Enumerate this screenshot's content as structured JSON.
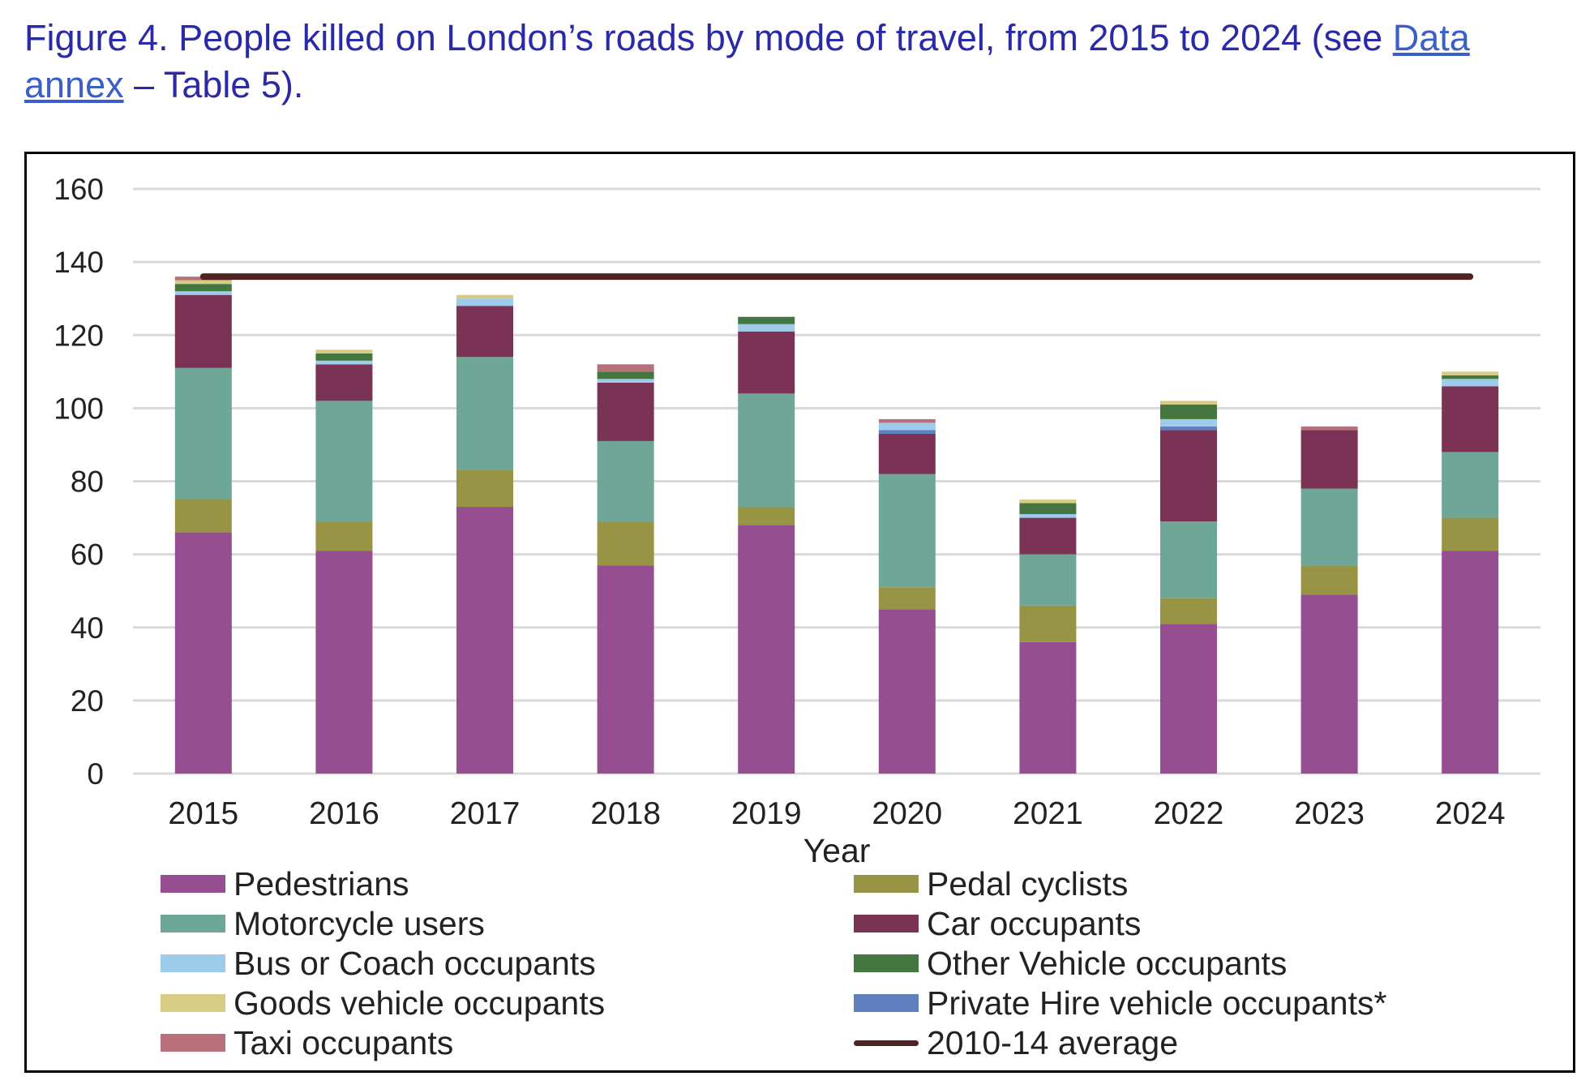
{
  "title": {
    "prefix": "Figure 4. People killed on London’s roads by mode of travel, from 2015 to 2024 (see ",
    "link": "Data annex",
    "suffix": " – Table 5)."
  },
  "chart_data": {
    "type": "bar",
    "stacked": true,
    "title": "Figure 4. People killed on London’s roads by mode of travel, from 2015 to 2024",
    "xlabel": "Year",
    "ylabel": "",
    "ylim": [
      0,
      160
    ],
    "yticks": [
      "0",
      "20",
      "40",
      "60",
      "80",
      "100",
      "120",
      "140",
      "160"
    ],
    "grid": true,
    "legend_position": "bottom",
    "categories": [
      "2015",
      "2016",
      "2017",
      "2018",
      "2019",
      "2020",
      "2021",
      "2022",
      "2023",
      "2024"
    ],
    "series": [
      {
        "name": "Pedestrians",
        "color": "#954f91",
        "values": [
          66,
          61,
          73,
          57,
          68,
          45,
          36,
          41,
          49,
          61
        ]
      },
      {
        "name": "Pedal cyclists",
        "color": "#979445",
        "values": [
          9,
          8,
          10,
          12,
          5,
          6,
          10,
          7,
          8,
          9
        ]
      },
      {
        "name": "Motorcycle users",
        "color": "#6ea797",
        "values": [
          36,
          33,
          31,
          22,
          31,
          31,
          14,
          21,
          21,
          18
        ]
      },
      {
        "name": "Car occupants",
        "color": "#7a3355",
        "values": [
          20,
          10,
          14,
          16,
          17,
          11,
          10,
          25,
          16,
          18
        ]
      },
      {
        "name": "Private Hire vehicle occupants*",
        "color": "#5f7fbf",
        "values": [
          0,
          0,
          0,
          0,
          0,
          1,
          0,
          1,
          0,
          0
        ]
      },
      {
        "name": "Bus or Coach occupants",
        "color": "#9dcbea",
        "values": [
          1,
          1,
          2,
          1,
          2,
          2,
          1,
          2,
          0,
          2
        ]
      },
      {
        "name": "Other Vehicle occupants",
        "color": "#43773f",
        "values": [
          2,
          2,
          0,
          2,
          2,
          0,
          3,
          4,
          0,
          1
        ]
      },
      {
        "name": "Goods vehicle occupants",
        "color": "#d8cb84",
        "values": [
          1,
          1,
          1,
          0,
          0,
          0,
          1,
          1,
          0,
          1
        ]
      },
      {
        "name": "Taxi occupants",
        "color": "#b9707a",
        "values": [
          1,
          0,
          0,
          2,
          0,
          1,
          0,
          0,
          1,
          0
        ]
      }
    ],
    "line": {
      "name": "2010-14 average",
      "color": "#4f2420",
      "value": 136
    }
  },
  "legend": [
    "Pedestrians",
    "Pedal cyclists",
    "Motorcycle users",
    "Car occupants",
    "Bus or Coach occupants",
    "Other Vehicle occupants",
    "Goods vehicle occupants",
    "Private Hire vehicle occupants*",
    "Taxi occupants",
    "2010-14 average"
  ]
}
